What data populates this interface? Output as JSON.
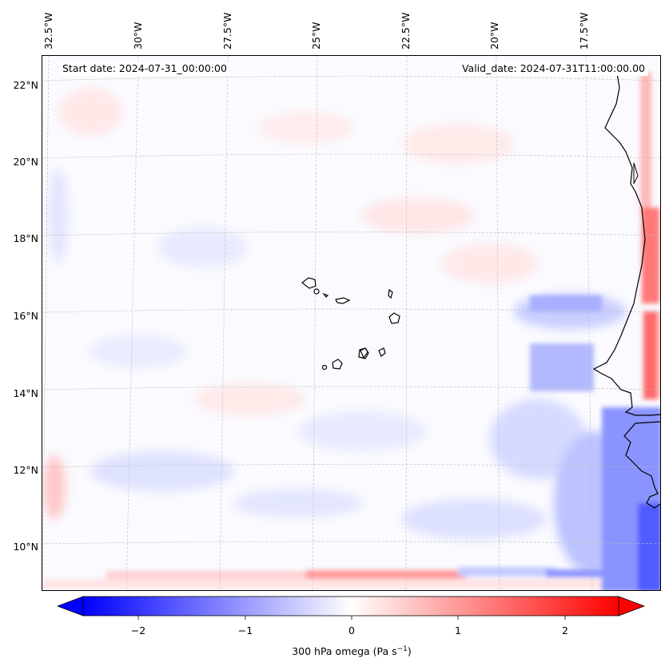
{
  "header": {
    "start_date": "Start date: 2024-07-31_00:00:00",
    "valid_date": "Valid_date: 2024-07-31T11:00:00.00"
  },
  "map": {
    "latitude_labels": [
      "22°N",
      "20°N",
      "18°N",
      "16°N",
      "14°N",
      "12°N",
      "10°N"
    ],
    "longitude_labels": [
      "32.5°W",
      "30°W",
      "27.5°W",
      "25°W",
      "22.5°W",
      "20°W",
      "17.5°W"
    ],
    "field": "300 hPa omega",
    "colors": {
      "negative": "#0000ff",
      "zero": "#ffffff",
      "positive": "#ff0000",
      "coastline": "#000000",
      "grid": "#b8b8b8"
    }
  },
  "colorbar": {
    "ticks": [
      "−2",
      "−1",
      "0",
      "1",
      "2"
    ],
    "label_text": "300 hPa omega (Pa s",
    "label_exp": "−1",
    "label_close": ")"
  }
}
